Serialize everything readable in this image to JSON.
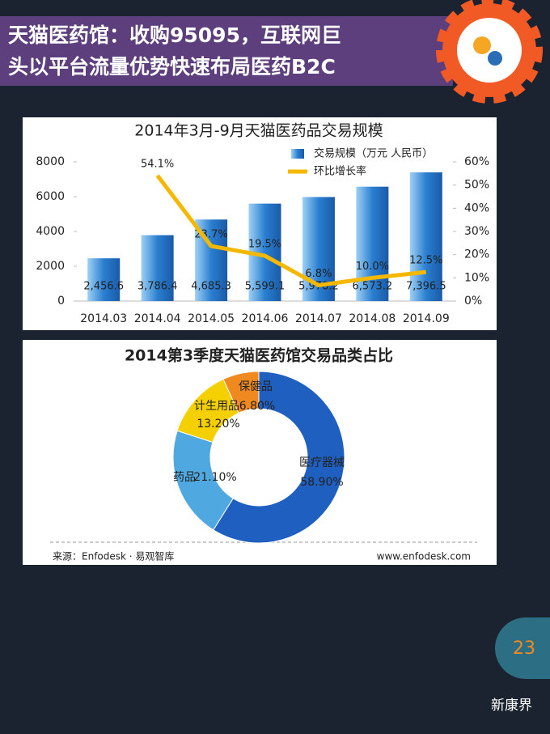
{
  "header": {
    "title_lines": [
      "天猫医药馆：收购95095，互联网巨",
      "头以平台流量优势快速布局医药B2C"
    ]
  },
  "chart_data": [
    {
      "type": "bar",
      "title": "2014年3月-9月天猫医药品交易规模",
      "categories": [
        "2014.03",
        "2014.04",
        "2014.05",
        "2014.06",
        "2014.07",
        "2014.08",
        "2014.09"
      ],
      "series": [
        {
          "name": "交易规模（万元 人民币）",
          "type": "bar",
          "color": "#2a7fd0",
          "values": [
            2456.6,
            3786.4,
            4685.3,
            5599.1,
            5978.2,
            6573.2,
            7396.5
          ],
          "value_labels": [
            "2,456.6",
            "3,786.4",
            "4,685.3",
            "5,599.1",
            "5,978.2",
            "6,573.2",
            "7,396.5"
          ]
        },
        {
          "name": "环比增长率",
          "type": "line",
          "axis": "y2",
          "color": "#f5b800",
          "values": [
            null,
            54.1,
            23.7,
            19.5,
            6.8,
            10.0,
            12.5
          ],
          "value_labels": [
            null,
            "54.1%",
            "23.7%",
            "19.5%",
            "6.8%",
            "10.0%",
            "12.5%"
          ]
        }
      ],
      "ylim": [
        0,
        8000
      ],
      "yticks": [
        0,
        2000,
        4000,
        6000,
        8000
      ],
      "y2lim": [
        0,
        60
      ],
      "y2ticks": [
        {
          "value": 0,
          "label": "0%"
        },
        {
          "value": 10,
          "label": "10%"
        },
        {
          "value": 20,
          "label": "20%"
        },
        {
          "value": 30,
          "label": "30%"
        },
        {
          "value": 40,
          "label": "40%"
        },
        {
          "value": 50,
          "label": "50%"
        },
        {
          "value": 60,
          "label": "60%"
        }
      ]
    },
    {
      "type": "donut",
      "title": "2014第3季度天猫医药馆交易品类占比",
      "categories": [
        "医疗器械",
        "药品",
        "计生用品",
        "保健品"
      ],
      "values": [
        58.9,
        21.1,
        13.2,
        6.8
      ],
      "value_labels": [
        "58.90%",
        "21.10%",
        "13.20%",
        "6.80%"
      ],
      "colors": [
        "#1f5fbf",
        "#4fa8e0",
        "#f5d000",
        "#f08a20"
      ]
    }
  ],
  "source": "来源：Enfodesk · 易观智库",
  "website": "www.enfodesk.com",
  "page_number": "23",
  "brand": "新康界"
}
